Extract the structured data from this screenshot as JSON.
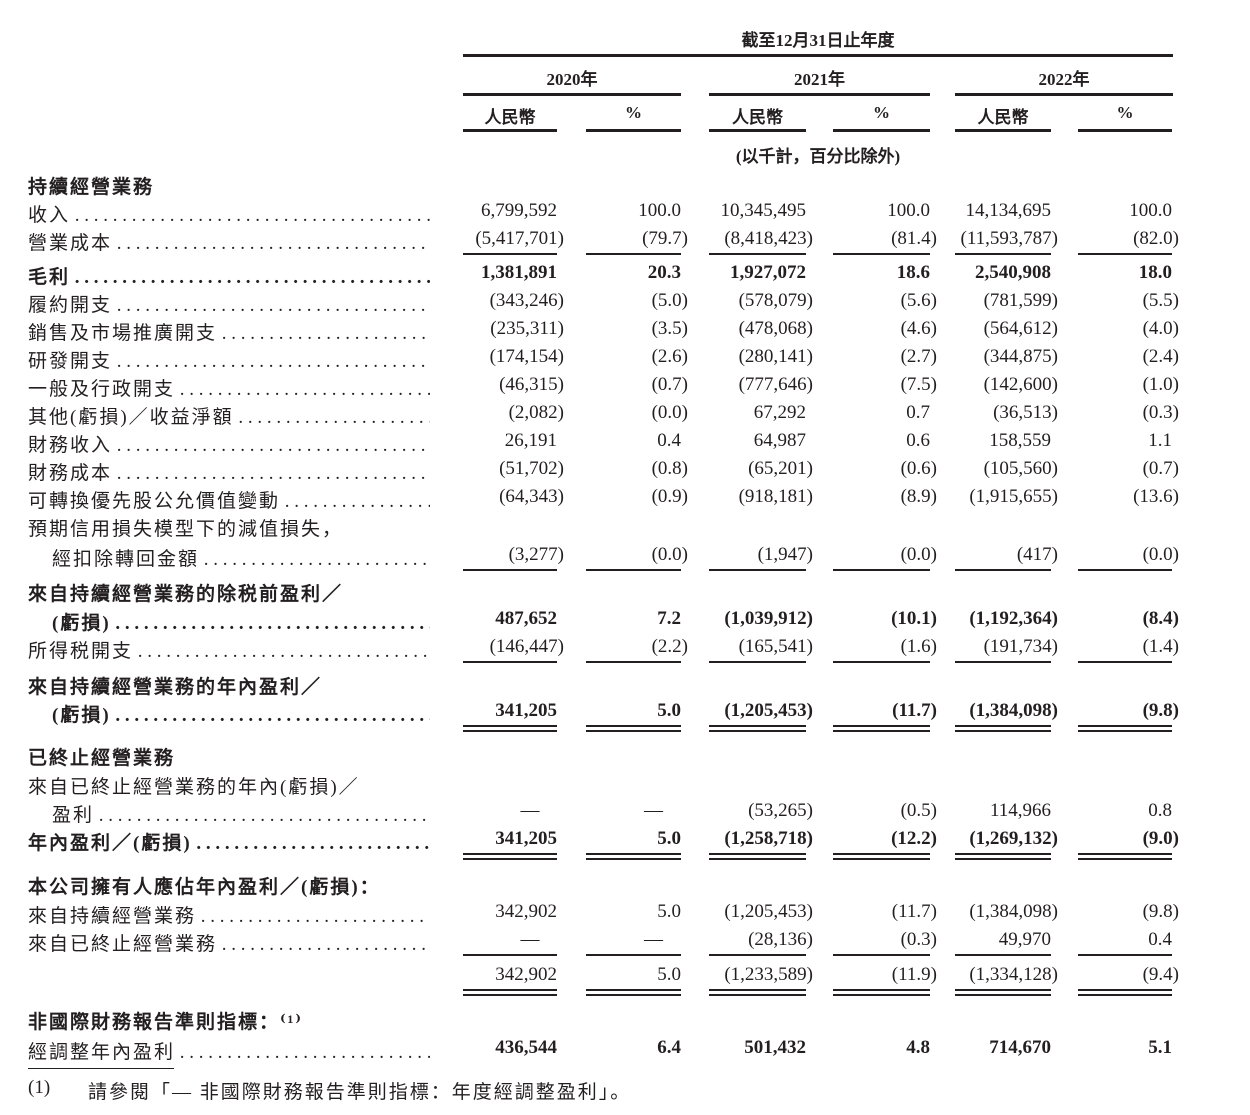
{
  "header": {
    "period": "截至12月31日止年度",
    "years": [
      "2020年",
      "2021年",
      "2022年"
    ],
    "subcols": [
      "人民幣",
      "%",
      "人民幣",
      "%",
      "人民幣",
      "%"
    ],
    "units": "(以千計，百分比除外)"
  },
  "rows": [
    {
      "label": "持續經營業務",
      "bold": true,
      "dots": false,
      "values": []
    },
    {
      "label": "收入",
      "values": [
        "6,799,592",
        "100.0",
        "10,345,495",
        "100.0",
        "14,134,695",
        "100.0"
      ]
    },
    {
      "label": "營業成本",
      "values": [
        "(5,417,701)",
        "(79.7)",
        "(8,418,423)",
        "(81.4)",
        "(11,593,787)",
        "(82.0)"
      ],
      "rule": "single"
    },
    {
      "label": "毛利",
      "bold": true,
      "values": [
        "1,381,891",
        "20.3",
        "1,927,072",
        "18.6",
        "2,540,908",
        "18.0"
      ]
    },
    {
      "label": "履約開支",
      "values": [
        "(343,246)",
        "(5.0)",
        "(578,079)",
        "(5.6)",
        "(781,599)",
        "(5.5)"
      ]
    },
    {
      "label": "銷售及市場推廣開支",
      "values": [
        "(235,311)",
        "(3.5)",
        "(478,068)",
        "(4.6)",
        "(564,612)",
        "(4.0)"
      ]
    },
    {
      "label": "研發開支",
      "values": [
        "(174,154)",
        "(2.6)",
        "(280,141)",
        "(2.7)",
        "(344,875)",
        "(2.4)"
      ]
    },
    {
      "label": "一般及行政開支",
      "values": [
        "(46,315)",
        "(0.7)",
        "(777,646)",
        "(7.5)",
        "(142,600)",
        "(1.0)"
      ]
    },
    {
      "label": "其他(虧損)／收益淨額",
      "values": [
        "(2,082)",
        "(0.0)",
        "67,292",
        "0.7",
        "(36,513)",
        "(0.3)"
      ]
    },
    {
      "label": "財務收入",
      "values": [
        "26,191",
        "0.4",
        "64,987",
        "0.6",
        "158,559",
        "1.1"
      ]
    },
    {
      "label": "財務成本",
      "values": [
        "(51,702)",
        "(0.8)",
        "(65,201)",
        "(0.6)",
        "(105,560)",
        "(0.7)"
      ]
    },
    {
      "label": "可轉換優先股公允價值變動",
      "values": [
        "(64,343)",
        "(0.9)",
        "(918,181)",
        "(8.9)",
        "(1,915,655)",
        "(13.6)"
      ]
    },
    {
      "label": "預期信用損失模型下的減值損失，",
      "dots": false,
      "values": []
    },
    {
      "label": "經扣除轉回金額",
      "indent": true,
      "values": [
        "(3,277)",
        "(0.0)",
        "(1,947)",
        "(0.0)",
        "(417)",
        "(0.0)"
      ],
      "rule": "single"
    },
    {
      "label": "來自持續經營業務的除税前盈利／",
      "bold": true,
      "dots": false,
      "values": []
    },
    {
      "label": "(虧損)",
      "bold": true,
      "indent": true,
      "values": [
        "487,652",
        "7.2",
        "(1,039,912)",
        "(10.1)",
        "(1,192,364)",
        "(8.4)"
      ]
    },
    {
      "label": "所得税開支",
      "values": [
        "(146,447)",
        "(2.2)",
        "(165,541)",
        "(1.6)",
        "(191,734)",
        "(1.4)"
      ],
      "rule": "single"
    },
    {
      "label": "來自持續經營業務的年內盈利／",
      "bold": true,
      "dots": false,
      "values": []
    },
    {
      "label": "(虧損)",
      "bold": true,
      "indent": true,
      "values": [
        "341,205",
        "5.0",
        "(1,205,453)",
        "(11.7)",
        "(1,384,098)",
        "(9.8)"
      ],
      "rule": "double"
    },
    {
      "label": "已終止經營業務",
      "bold": true,
      "dots": false,
      "values": []
    },
    {
      "label": "來自已終止經營業務的年內(虧損)／",
      "dots": false,
      "values": []
    },
    {
      "label": "盈利",
      "indent": true,
      "values": [
        "—",
        "—",
        "(53,265)",
        "(0.5)",
        "114,966",
        "0.8"
      ]
    },
    {
      "label": "年內盈利／(虧損)",
      "bold": true,
      "values": [
        "341,205",
        "5.0",
        "(1,258,718)",
        "(12.2)",
        "(1,269,132)",
        "(9.0)"
      ],
      "rule": "double"
    },
    {
      "label": "本公司擁有人應佔年內盈利／(虧損)：",
      "bold": true,
      "dots": false,
      "values": []
    },
    {
      "label": "來自持續經營業務",
      "values": [
        "342,902",
        "5.0",
        "(1,205,453)",
        "(11.7)",
        "(1,384,098)",
        "(9.8)"
      ]
    },
    {
      "label": "來自已終止經營業務",
      "values": [
        "—",
        "—",
        "(28,136)",
        "(0.3)",
        "49,970",
        "0.4"
      ],
      "rule": "single"
    },
    {
      "label": "",
      "dots": false,
      "values": [
        "342,902",
        "5.0",
        "(1,233,589)",
        "(11.9)",
        "(1,334,128)",
        "(9.4)"
      ],
      "rule": "double"
    },
    {
      "label": "非國際財務報告準則指標：⁽¹⁾",
      "bold": true,
      "dots": false,
      "values": []
    },
    {
      "label": "經調整年內盈利",
      "boldvals": true,
      "values": [
        "436,544",
        "6.4",
        "501,432",
        "4.8",
        "714,670",
        "5.1"
      ]
    }
  ],
  "footnote": {
    "marker": "(1)",
    "text": "請參閱「— 非國際財務報告準則指標：年度經調整盈利」。"
  }
}
